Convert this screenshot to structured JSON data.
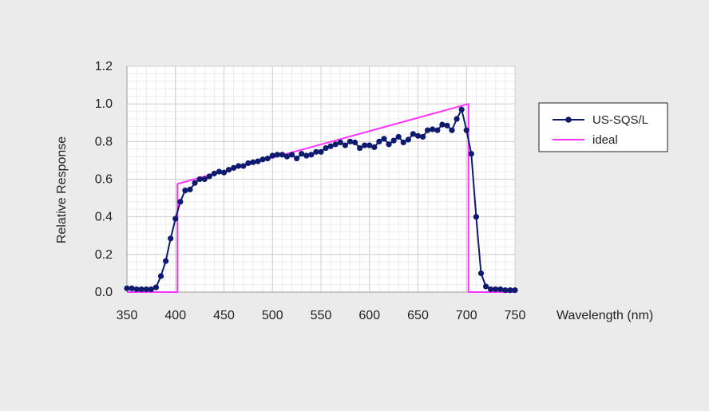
{
  "chart_data": {
    "type": "line",
    "xlabel": "Wavelength (nm)",
    "ylabel": "Relative Response",
    "xlim": [
      350,
      750
    ],
    "ylim": [
      0,
      1.2
    ],
    "x_ticks": [
      "350",
      "400",
      "450",
      "500",
      "550",
      "600",
      "650",
      "700",
      "750"
    ],
    "y_ticks": [
      "0.0",
      "0.2",
      "0.4",
      "0.6",
      "0.8",
      "1.0",
      "1.2"
    ],
    "grid": true,
    "legend_position": "right",
    "series": [
      {
        "name": "US-SQS/L",
        "color": "#0d1a6e",
        "marker": "circle",
        "x": [
          350,
          355,
          360,
          365,
          370,
          375,
          380,
          385,
          390,
          395,
          400,
          405,
          410,
          415,
          420,
          425,
          430,
          435,
          440,
          445,
          450,
          455,
          460,
          465,
          470,
          475,
          480,
          485,
          490,
          495,
          500,
          505,
          510,
          515,
          520,
          525,
          530,
          535,
          540,
          545,
          550,
          555,
          560,
          565,
          570,
          575,
          580,
          585,
          590,
          595,
          600,
          605,
          610,
          615,
          620,
          625,
          630,
          635,
          640,
          645,
          650,
          655,
          660,
          665,
          670,
          675,
          680,
          685,
          690,
          695,
          700,
          705,
          710,
          715,
          720,
          725,
          730,
          735,
          740,
          745,
          750
        ],
        "y": [
          0.02,
          0.02,
          0.015,
          0.015,
          0.015,
          0.015,
          0.025,
          0.085,
          0.165,
          0.285,
          0.39,
          0.48,
          0.54,
          0.545,
          0.58,
          0.6,
          0.6,
          0.615,
          0.63,
          0.64,
          0.635,
          0.65,
          0.66,
          0.67,
          0.67,
          0.685,
          0.69,
          0.695,
          0.705,
          0.71,
          0.725,
          0.73,
          0.73,
          0.72,
          0.73,
          0.71,
          0.735,
          0.725,
          0.73,
          0.745,
          0.745,
          0.765,
          0.775,
          0.785,
          0.795,
          0.78,
          0.8,
          0.795,
          0.765,
          0.78,
          0.78,
          0.77,
          0.8,
          0.815,
          0.785,
          0.805,
          0.825,
          0.795,
          0.81,
          0.84,
          0.83,
          0.825,
          0.86,
          0.865,
          0.86,
          0.89,
          0.885,
          0.86,
          0.92,
          0.97,
          0.86,
          0.735,
          0.4,
          0.1,
          0.03,
          0.015,
          0.015,
          0.015,
          0.01,
          0.01,
          0.01
        ]
      },
      {
        "name": "ideal",
        "color": "#ff33ff",
        "marker": "none",
        "x": [
          350,
          402,
          402,
          702,
          702,
          750
        ],
        "y": [
          0,
          0,
          0.575,
          1.0,
          0,
          0
        ]
      }
    ]
  }
}
